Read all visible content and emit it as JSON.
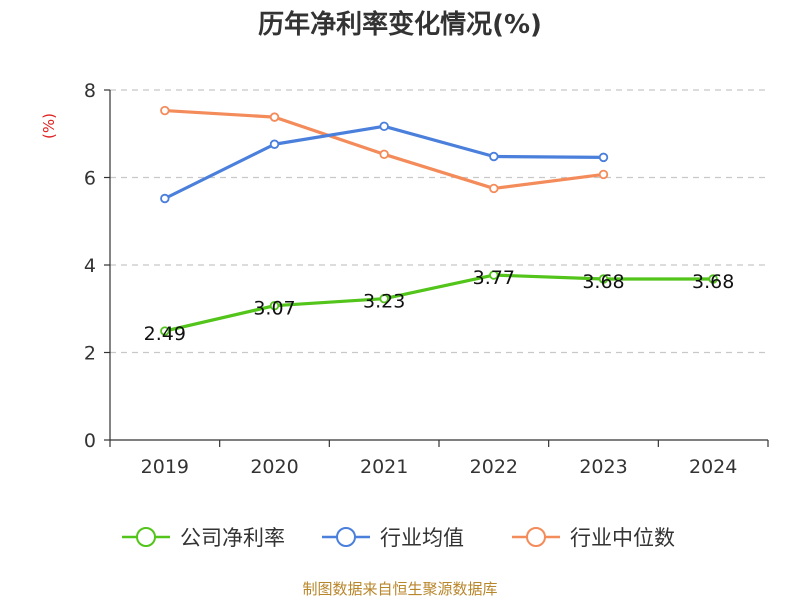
{
  "chart_data": {
    "type": "line",
    "title": "历年净利率变化情况(%)",
    "unit_label": "(%)",
    "categories": [
      "2019",
      "2020",
      "2021",
      "2022",
      "2023",
      "2024"
    ],
    "ylim": [
      0,
      8
    ],
    "yticks": [
      "0",
      "2",
      "4",
      "6",
      "8"
    ],
    "grid": true,
    "legend_position": "bottom",
    "series": [
      {
        "name": "公司净利率",
        "values": [
          2.49,
          3.07,
          3.23,
          3.77,
          3.68,
          3.68
        ],
        "labels": [
          "2.49",
          "3.07",
          "3.23",
          "3.77",
          "3.68",
          "3.68"
        ],
        "color": "#52c41a"
      },
      {
        "name": "行业均值",
        "values": [
          5.52,
          6.76,
          7.17,
          6.48,
          6.46,
          null
        ],
        "color": "#4a7fdc"
      },
      {
        "name": "行业中位数",
        "values": [
          7.53,
          7.38,
          6.53,
          5.75,
          6.07,
          null
        ],
        "color": "#f48b5a"
      }
    ]
  },
  "source": "制图数据来自恒生聚源数据库"
}
